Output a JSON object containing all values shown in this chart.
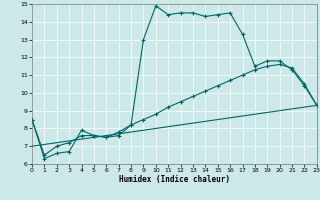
{
  "title": "",
  "xlabel": "Humidex (Indice chaleur)",
  "xlim": [
    0,
    23
  ],
  "ylim": [
    6,
    15
  ],
  "yticks": [
    6,
    7,
    8,
    9,
    10,
    11,
    12,
    13,
    14,
    15
  ],
  "xticks": [
    0,
    1,
    2,
    3,
    4,
    5,
    6,
    7,
    8,
    9,
    10,
    11,
    12,
    13,
    14,
    15,
    16,
    17,
    18,
    19,
    20,
    21,
    22,
    23
  ],
  "background_color": "#cce8e8",
  "line_color": "#006666",
  "series1_x": [
    0,
    1,
    2,
    3,
    4,
    5,
    6,
    7,
    8,
    9,
    10,
    11,
    12,
    13,
    14,
    15,
    16,
    17,
    18,
    19,
    20,
    21,
    22,
    23
  ],
  "series1_y": [
    8.5,
    6.3,
    6.6,
    6.7,
    7.9,
    7.6,
    7.5,
    7.6,
    8.2,
    13.0,
    14.9,
    14.4,
    14.5,
    14.5,
    14.3,
    14.4,
    14.5,
    13.3,
    11.5,
    11.8,
    11.8,
    11.3,
    10.4,
    9.3
  ],
  "series2_x": [
    0,
    1,
    2,
    3,
    4,
    5,
    6,
    7,
    8,
    9,
    10,
    11,
    12,
    13,
    14,
    15,
    16,
    17,
    18,
    19,
    20,
    21,
    22,
    23
  ],
  "series2_y": [
    8.5,
    6.5,
    7.0,
    7.2,
    7.6,
    7.6,
    7.5,
    7.8,
    8.2,
    8.5,
    8.8,
    9.2,
    9.5,
    9.8,
    10.1,
    10.4,
    10.7,
    11.0,
    11.3,
    11.5,
    11.6,
    11.4,
    10.5,
    9.3
  ],
  "series3_x": [
    0,
    23
  ],
  "series3_y": [
    7.0,
    9.3
  ]
}
